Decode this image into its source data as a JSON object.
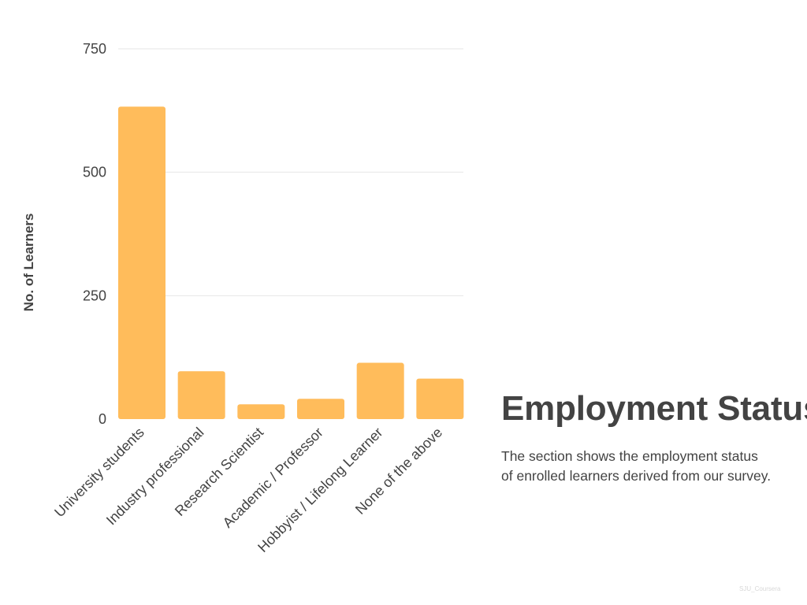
{
  "chart_data": {
    "type": "bar",
    "categories": [
      "University students",
      "Industry professional",
      "Research Scientist",
      "Academic / Professor",
      "Hobbyist / Lifelong Learner",
      "None of the above"
    ],
    "values": [
      633,
      97,
      30,
      41,
      114,
      82
    ],
    "ylabel": "No. of Learners",
    "xlabel": "",
    "ylim": [
      0,
      750
    ],
    "yticks": [
      0,
      250,
      500,
      750
    ],
    "grid": true,
    "legend": "none",
    "bar_color": "#ffbc5b",
    "grid_color": "#e6e6e6",
    "text_color": "#434343"
  },
  "section": {
    "title": "Employment Status",
    "description_lines": [
      "The section shows the employment status",
      "of enrolled learners derived from our survey."
    ]
  },
  "watermark": "SJU_Coursera"
}
